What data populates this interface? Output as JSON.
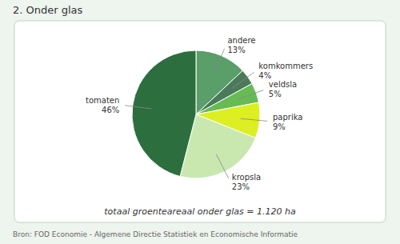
{
  "chart_data": {
    "type": "pie",
    "title": "2. Onder glas",
    "subtitle": "totaal groenteareaal onder glas = 1.120 ha",
    "source": "Bron: FOD Economie - Algemene Directie Statistiek en Economische Informatie",
    "categories": [
      "andere",
      "komkommers",
      "veldsla",
      "paprika",
      "kropsla",
      "tomaten"
    ],
    "values": [
      13,
      4,
      5,
      9,
      23,
      46
    ],
    "value_labels": [
      "13%",
      "4%",
      "5%",
      "9%",
      "23%",
      "46%"
    ],
    "colors": [
      "#5a9e6a",
      "#4a7a5a",
      "#66bb55",
      "#ddee22",
      "#c8e8b0",
      "#2d6e3e"
    ],
    "data_labels": true
  }
}
